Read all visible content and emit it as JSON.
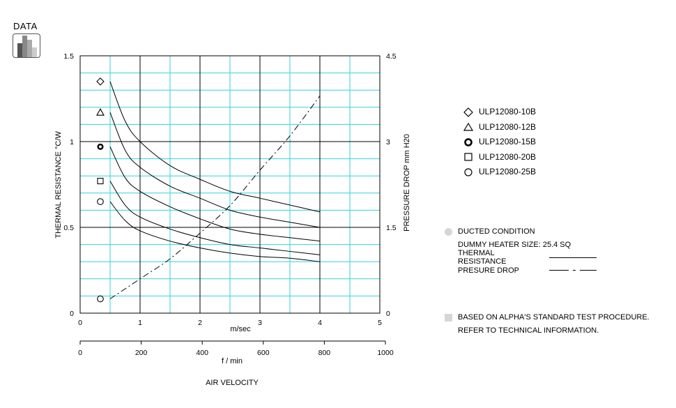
{
  "badge": {
    "label": "DATA"
  },
  "chart_data": {
    "type": "line",
    "xlabel_primary": "m/sec",
    "xlabel_secondary": "f / min",
    "xlabel_title": "AIR VELOCITY",
    "ylabel_left": "THERMAL  RESISTANCE   °C/W",
    "ylabel_right": "PRESSURE  DROP     mm H20",
    "x_primary": {
      "range": [
        0,
        5
      ],
      "ticks": [
        "0",
        "1",
        "2",
        "3",
        "4",
        "5"
      ]
    },
    "x_secondary": {
      "range": [
        0,
        1000
      ],
      "ticks": [
        "0",
        "200",
        "400",
        "600",
        "800",
        "1000"
      ]
    },
    "y_left": {
      "range": [
        0,
        1.5
      ],
      "ticks": [
        "0",
        "0.5",
        "1",
        "1.5"
      ]
    },
    "y_right": {
      "range": [
        0,
        4.5
      ],
      "ticks": [
        "0",
        "1.5",
        "3",
        "4.5"
      ]
    },
    "grid": true,
    "series": [
      {
        "name": "ULP12080-10B",
        "marker": "diamond",
        "marker_y": 1.35,
        "x": [
          0.5,
          0.75,
          1,
          1.5,
          2,
          2.5,
          3,
          3.5,
          4
        ],
        "y": [
          1.35,
          1.12,
          1.0,
          0.86,
          0.78,
          0.71,
          0.67,
          0.63,
          0.59
        ]
      },
      {
        "name": "ULP12080-12B",
        "marker": "triangle",
        "marker_y": 1.17,
        "x": [
          0.5,
          0.75,
          1,
          1.5,
          2,
          2.5,
          3,
          3.5,
          4
        ],
        "y": [
          1.17,
          0.95,
          0.85,
          0.74,
          0.67,
          0.6,
          0.56,
          0.53,
          0.5
        ]
      },
      {
        "name": "ULP12080-15B",
        "marker": "bullseye",
        "marker_y": 0.97,
        "x": [
          0.5,
          0.75,
          1,
          1.5,
          2,
          2.5,
          3,
          3.5,
          4
        ],
        "y": [
          0.97,
          0.79,
          0.71,
          0.62,
          0.55,
          0.49,
          0.46,
          0.44,
          0.42
        ]
      },
      {
        "name": "ULP12080-20B",
        "marker": "square",
        "marker_y": 0.77,
        "x": [
          0.5,
          0.75,
          1,
          1.5,
          2,
          2.5,
          3,
          3.5,
          4
        ],
        "y": [
          0.77,
          0.63,
          0.56,
          0.49,
          0.44,
          0.4,
          0.38,
          0.36,
          0.34
        ]
      },
      {
        "name": "ULP12080-25B",
        "marker": "circle",
        "marker_y": 0.65,
        "x": [
          0.5,
          0.75,
          1,
          1.5,
          2,
          2.5,
          3,
          3.5,
          4
        ],
        "y": [
          0.65,
          0.54,
          0.48,
          0.42,
          0.38,
          0.35,
          0.33,
          0.32,
          0.3
        ]
      }
    ],
    "pressure_drop": {
      "marker": "circle",
      "marker_y": 0.25,
      "x": [
        0.5,
        1,
        1.5,
        2,
        2.5,
        3,
        3.5,
        4
      ],
      "y": [
        0.25,
        0.6,
        0.95,
        1.4,
        1.88,
        2.5,
        3.1,
        3.8
      ]
    }
  },
  "notes": {
    "ducted": "DUCTED CONDITION",
    "heater": "DUMMY HEATER SIZE: 25.4 SQ",
    "thermal": "THERMAL RESISTANCE",
    "pressure": "PRESURE DROP",
    "based": "BASED ON ALPHA'S STANDARD TEST PROCEDURE.",
    "refer": "REFER TO TECHNICAL INFORMATION."
  },
  "colors": {
    "grid": "#33d2d8",
    "major_grid": "#000000",
    "badge_dark": "#555555",
    "badge_mid": "#888888",
    "badge_light": "#bbbbbb"
  }
}
